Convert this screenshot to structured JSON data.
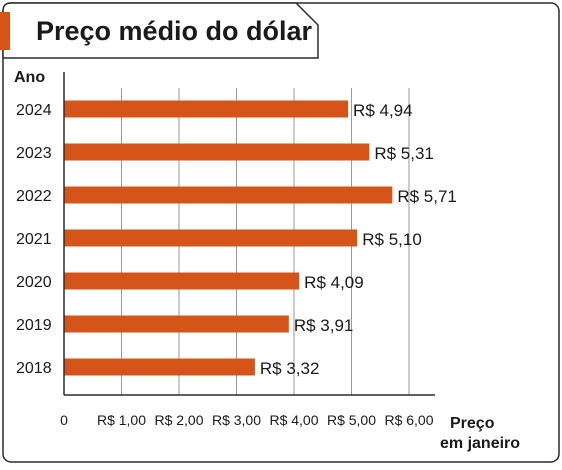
{
  "title": "Preço médio do dólar",
  "colors": {
    "bar": "#d4541a",
    "accent": "#d4541a",
    "grid": "#9a9a9a",
    "border": "#2b2b2b",
    "text": "#1a1a1a"
  },
  "chart_data": {
    "type": "bar",
    "orientation": "horizontal",
    "title": "Preço médio do dólar",
    "ylabel": "Ano",
    "xlabel": [
      "Preço",
      "em janeiro"
    ],
    "categories": [
      "2024",
      "2023",
      "2022",
      "2021",
      "2020",
      "2019",
      "2018"
    ],
    "values": [
      4.94,
      5.31,
      5.71,
      5.1,
      4.09,
      3.91,
      3.32
    ],
    "value_labels": [
      "R$ 4,94",
      "R$ 5,31",
      "R$ 5,71",
      "R$ 5,10",
      "R$ 4,09",
      "R$ 3,91",
      "R$ 3,32"
    ],
    "xlim": [
      0,
      6
    ],
    "xticks": [
      0,
      1,
      2,
      3,
      4,
      5,
      6
    ],
    "xtick_labels": [
      "0",
      "R$ 1,00",
      "R$ 2,00",
      "R$ 3,00",
      "R$ 4,00",
      "R$ 5,00",
      "R$ 6,00"
    ],
    "grid": true
  }
}
